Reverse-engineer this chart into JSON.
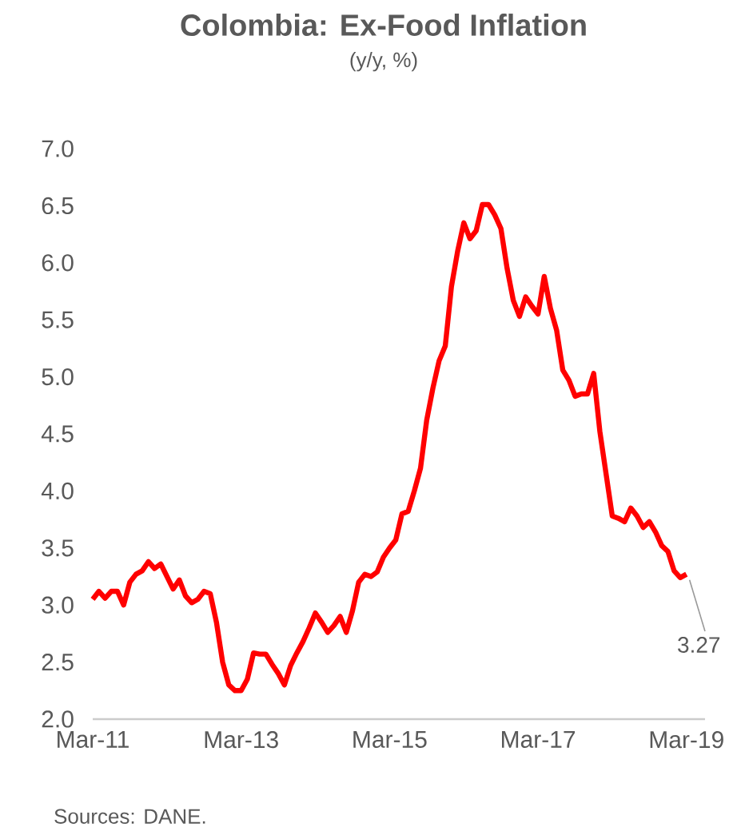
{
  "chart_data": {
    "type": "line",
    "title": "Colombia: Ex-Food Inflation",
    "subtitle": "(y/y, %)",
    "x": [
      "2011-03",
      "2011-04",
      "2011-05",
      "2011-06",
      "2011-07",
      "2011-08",
      "2011-09",
      "2011-10",
      "2011-11",
      "2011-12",
      "2012-01",
      "2012-02",
      "2012-03",
      "2012-04",
      "2012-05",
      "2012-06",
      "2012-07",
      "2012-08",
      "2012-09",
      "2012-10",
      "2012-11",
      "2012-12",
      "2013-01",
      "2013-02",
      "2013-03",
      "2013-04",
      "2013-05",
      "2013-06",
      "2013-07",
      "2013-08",
      "2013-09",
      "2013-10",
      "2013-11",
      "2013-12",
      "2014-01",
      "2014-02",
      "2014-03",
      "2014-04",
      "2014-05",
      "2014-06",
      "2014-07",
      "2014-08",
      "2014-09",
      "2014-10",
      "2014-11",
      "2014-12",
      "2015-01",
      "2015-02",
      "2015-03",
      "2015-04",
      "2015-05",
      "2015-06",
      "2015-07",
      "2015-08",
      "2015-09",
      "2015-10",
      "2015-11",
      "2015-12",
      "2016-01",
      "2016-02",
      "2016-03",
      "2016-04",
      "2016-05",
      "2016-06",
      "2016-07",
      "2016-08",
      "2016-09",
      "2016-10",
      "2016-11",
      "2016-12",
      "2017-01",
      "2017-02",
      "2017-03",
      "2017-04",
      "2017-05",
      "2017-06",
      "2017-07",
      "2017-08",
      "2017-09",
      "2017-10",
      "2017-11",
      "2017-12",
      "2018-01",
      "2018-02",
      "2018-03",
      "2018-04",
      "2018-05",
      "2018-06",
      "2018-07",
      "2018-08",
      "2018-09",
      "2018-10",
      "2018-11",
      "2018-12",
      "2019-01",
      "2019-02",
      "2019-03"
    ],
    "series": [
      {
        "color": "#ff0000",
        "values": [
          3.05,
          3.12,
          3.06,
          3.12,
          3.12,
          3.0,
          3.2,
          3.27,
          3.3,
          3.38,
          3.32,
          3.36,
          3.25,
          3.14,
          3.22,
          3.08,
          3.02,
          3.05,
          3.12,
          3.1,
          2.85,
          2.5,
          2.3,
          2.25,
          2.25,
          2.35,
          2.58,
          2.57,
          2.57,
          2.48,
          2.4,
          2.3,
          2.47,
          2.58,
          2.68,
          2.8,
          2.93,
          2.85,
          2.76,
          2.82,
          2.9,
          2.76,
          2.95,
          3.2,
          3.27,
          3.25,
          3.29,
          3.42,
          3.5,
          3.57,
          3.8,
          3.82,
          4.0,
          4.2,
          4.62,
          4.9,
          5.14,
          5.27,
          5.79,
          6.1,
          6.35,
          6.21,
          6.28,
          6.51,
          6.51,
          6.42,
          6.3,
          5.95,
          5.67,
          5.53,
          5.7,
          5.62,
          5.55,
          5.88,
          5.6,
          5.41,
          5.06,
          4.97,
          4.83,
          4.85,
          4.85,
          5.03,
          4.52,
          4.15,
          3.78,
          3.76,
          3.73,
          3.85,
          3.78,
          3.68,
          3.73,
          3.64,
          3.52,
          3.47,
          3.3,
          3.24,
          3.27
        ]
      }
    ],
    "xlim": [
      "2011-03",
      "2019-06"
    ],
    "xticks": [
      {
        "value": "2011-03",
        "label": "Mar-11"
      },
      {
        "value": "2013-03",
        "label": "Mar-13"
      },
      {
        "value": "2015-03",
        "label": "Mar-15"
      },
      {
        "value": "2017-03",
        "label": "Mar-17"
      },
      {
        "value": "2019-03",
        "label": "Mar-19"
      }
    ],
    "ylim": [
      2,
      7
    ],
    "yticks": [
      {
        "value": 2,
        "label": "2.0"
      },
      {
        "value": 2.5,
        "label": "2.5"
      },
      {
        "value": 3,
        "label": "3.0"
      },
      {
        "value": 3.5,
        "label": "3.5"
      },
      {
        "value": 4,
        "label": "4.0"
      },
      {
        "value": 4.5,
        "label": "4.5"
      },
      {
        "value": 5,
        "label": "5.0"
      },
      {
        "value": 5.5,
        "label": "5.5"
      },
      {
        "value": 6,
        "label": "6.0"
      },
      {
        "value": 6.5,
        "label": "6.5"
      },
      {
        "value": 7,
        "label": "7.0"
      }
    ],
    "line_style": "solid",
    "annotations": [
      {
        "text": "3.27",
        "x": "2019-03",
        "y": 3.27
      },
      "Sources: DANE."
    ]
  }
}
